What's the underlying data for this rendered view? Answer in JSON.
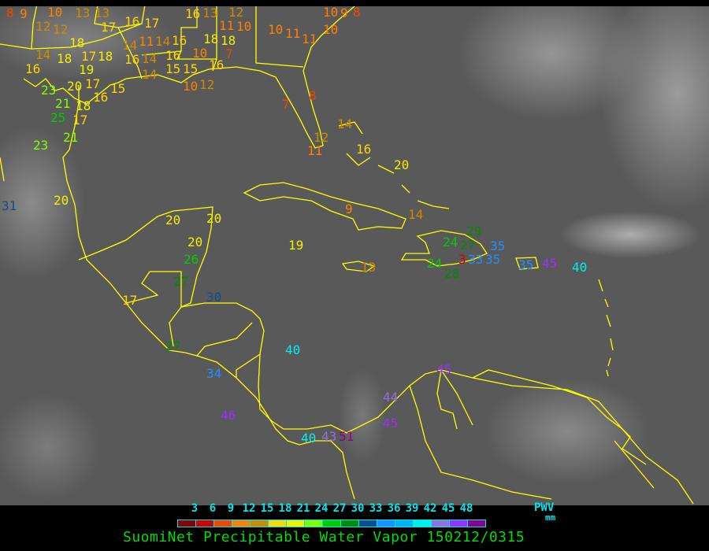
{
  "title": "SuomiNet Precipitable Water Vapor 150212/0315",
  "legend": {
    "unit_label": "PWV",
    "unit": "mm",
    "ticks": [
      "3",
      "6",
      "9",
      "12",
      "15",
      "18",
      "21",
      "24",
      "27",
      "30",
      "33",
      "36",
      "39",
      "42",
      "45",
      "48"
    ],
    "colors": [
      "#8b0000",
      "#d40000",
      "#f24500",
      "#ff8000",
      "#d08a00",
      "#ffd700",
      "#f0f000",
      "#80ff00",
      "#00cc00",
      "#008b00",
      "#104e8b",
      "#1e90ff",
      "#00b2ee",
      "#00eeee",
      "#9370db",
      "#9b30ff",
      "#8b008b"
    ]
  },
  "coastline_color": "#ffff00",
  "stations": [
    "8",
    "9",
    "10",
    "13",
    "13",
    "12",
    "12",
    "18",
    "14",
    "18",
    "16",
    "17",
    "18",
    "19",
    "17",
    "14",
    "11",
    "14",
    "16",
    "16",
    "16",
    "14",
    "14",
    "15",
    "15",
    "10",
    "12",
    "16",
    "23",
    "20",
    "21",
    "16",
    "18",
    "17",
    "25",
    "21",
    "23",
    "15",
    "17",
    "16",
    "18",
    "17",
    "16",
    "13",
    "12",
    "11",
    "10",
    "18",
    "7",
    "10",
    "10",
    "11",
    "11",
    "10",
    "10",
    "9",
    "8",
    "8",
    "7",
    "12",
    "11",
    "14",
    "16",
    "20",
    "9",
    "14",
    "31",
    "20",
    "20",
    "20",
    "20",
    "26",
    "27",
    "30",
    "17",
    "27",
    "19",
    "13",
    "24",
    "27",
    "29",
    "3",
    "24",
    "28",
    "33",
    "35",
    "35",
    "35",
    "45",
    "40",
    "40",
    "34",
    "46",
    "40",
    "43",
    "51",
    "44",
    "45",
    "45"
  ]
}
